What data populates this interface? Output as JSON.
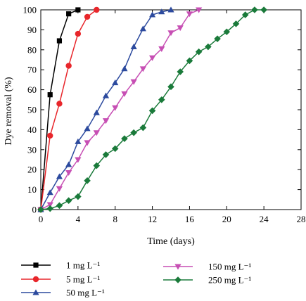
{
  "chart_data": {
    "type": "line",
    "xlabel": "Time (days)",
    "ylabel": "Dye removal (%)",
    "xlim": [
      0,
      28
    ],
    "ylim": [
      0,
      100
    ],
    "xticks": [
      0,
      4,
      8,
      12,
      16,
      20,
      24,
      28
    ],
    "yticks": [
      0,
      10,
      20,
      30,
      40,
      50,
      60,
      70,
      80,
      90,
      100
    ],
    "grid": false,
    "legend_position": "bottom",
    "series": [
      {
        "name": "1 mg L⁻¹",
        "marker": "square",
        "color": "#000000",
        "points": [
          [
            0,
            0
          ],
          [
            1,
            57.5
          ],
          [
            2,
            84.5
          ],
          [
            3,
            98
          ],
          [
            4,
            100
          ]
        ]
      },
      {
        "name": "5 mg L⁻¹",
        "marker": "circle",
        "color": "#e8262b",
        "points": [
          [
            0,
            0
          ],
          [
            1,
            37
          ],
          [
            2,
            53
          ],
          [
            3,
            72
          ],
          [
            4,
            88
          ],
          [
            5,
            96.5
          ],
          [
            6,
            100
          ]
        ]
      },
      {
        "name": "50 mg L⁻¹",
        "marker": "triangle-up",
        "color": "#2c4a9e",
        "points": [
          [
            0,
            0
          ],
          [
            1,
            8.5
          ],
          [
            2,
            16.5
          ],
          [
            3,
            22.5
          ],
          [
            4,
            34
          ],
          [
            5,
            40.5
          ],
          [
            6,
            48.5
          ],
          [
            7,
            57
          ],
          [
            8,
            63.5
          ],
          [
            9,
            70.5
          ],
          [
            10,
            81.5
          ],
          [
            11,
            90.5
          ],
          [
            12,
            97.5
          ],
          [
            13,
            99
          ],
          [
            14,
            100
          ]
        ]
      },
      {
        "name": "150 mg L⁻¹",
        "marker": "triangle-down",
        "color": "#c74fb4",
        "points": [
          [
            0,
            0
          ],
          [
            1,
            2.5
          ],
          [
            2,
            10.5
          ],
          [
            3,
            18.5
          ],
          [
            4,
            25
          ],
          [
            5,
            33.5
          ],
          [
            6,
            38.5
          ],
          [
            7,
            44.5
          ],
          [
            8,
            51
          ],
          [
            9,
            58
          ],
          [
            10,
            64
          ],
          [
            11,
            70.5
          ],
          [
            12,
            76
          ],
          [
            13,
            80.5
          ],
          [
            14,
            88.5
          ],
          [
            15,
            91
          ],
          [
            16,
            98
          ],
          [
            17,
            100
          ]
        ]
      },
      {
        "name": "250 mg L⁻¹",
        "marker": "diamond",
        "color": "#1a7a3a",
        "points": [
          [
            0,
            0
          ],
          [
            1,
            0.5
          ],
          [
            2,
            2
          ],
          [
            3,
            4.5
          ],
          [
            4,
            6.5
          ],
          [
            5,
            14.5
          ],
          [
            6,
            22
          ],
          [
            7,
            27.5
          ],
          [
            8,
            30.5
          ],
          [
            9,
            35.5
          ],
          [
            10,
            38.5
          ],
          [
            11,
            41
          ],
          [
            12,
            49.5
          ],
          [
            13,
            55
          ],
          [
            14,
            61.5
          ],
          [
            15,
            69
          ],
          [
            16,
            74.5
          ],
          [
            17,
            79
          ],
          [
            18,
            81.5
          ],
          [
            19,
            85.5
          ],
          [
            20,
            89
          ],
          [
            21,
            93
          ],
          [
            22,
            97.5
          ],
          [
            23,
            100
          ],
          [
            24,
            100
          ]
        ]
      }
    ]
  }
}
